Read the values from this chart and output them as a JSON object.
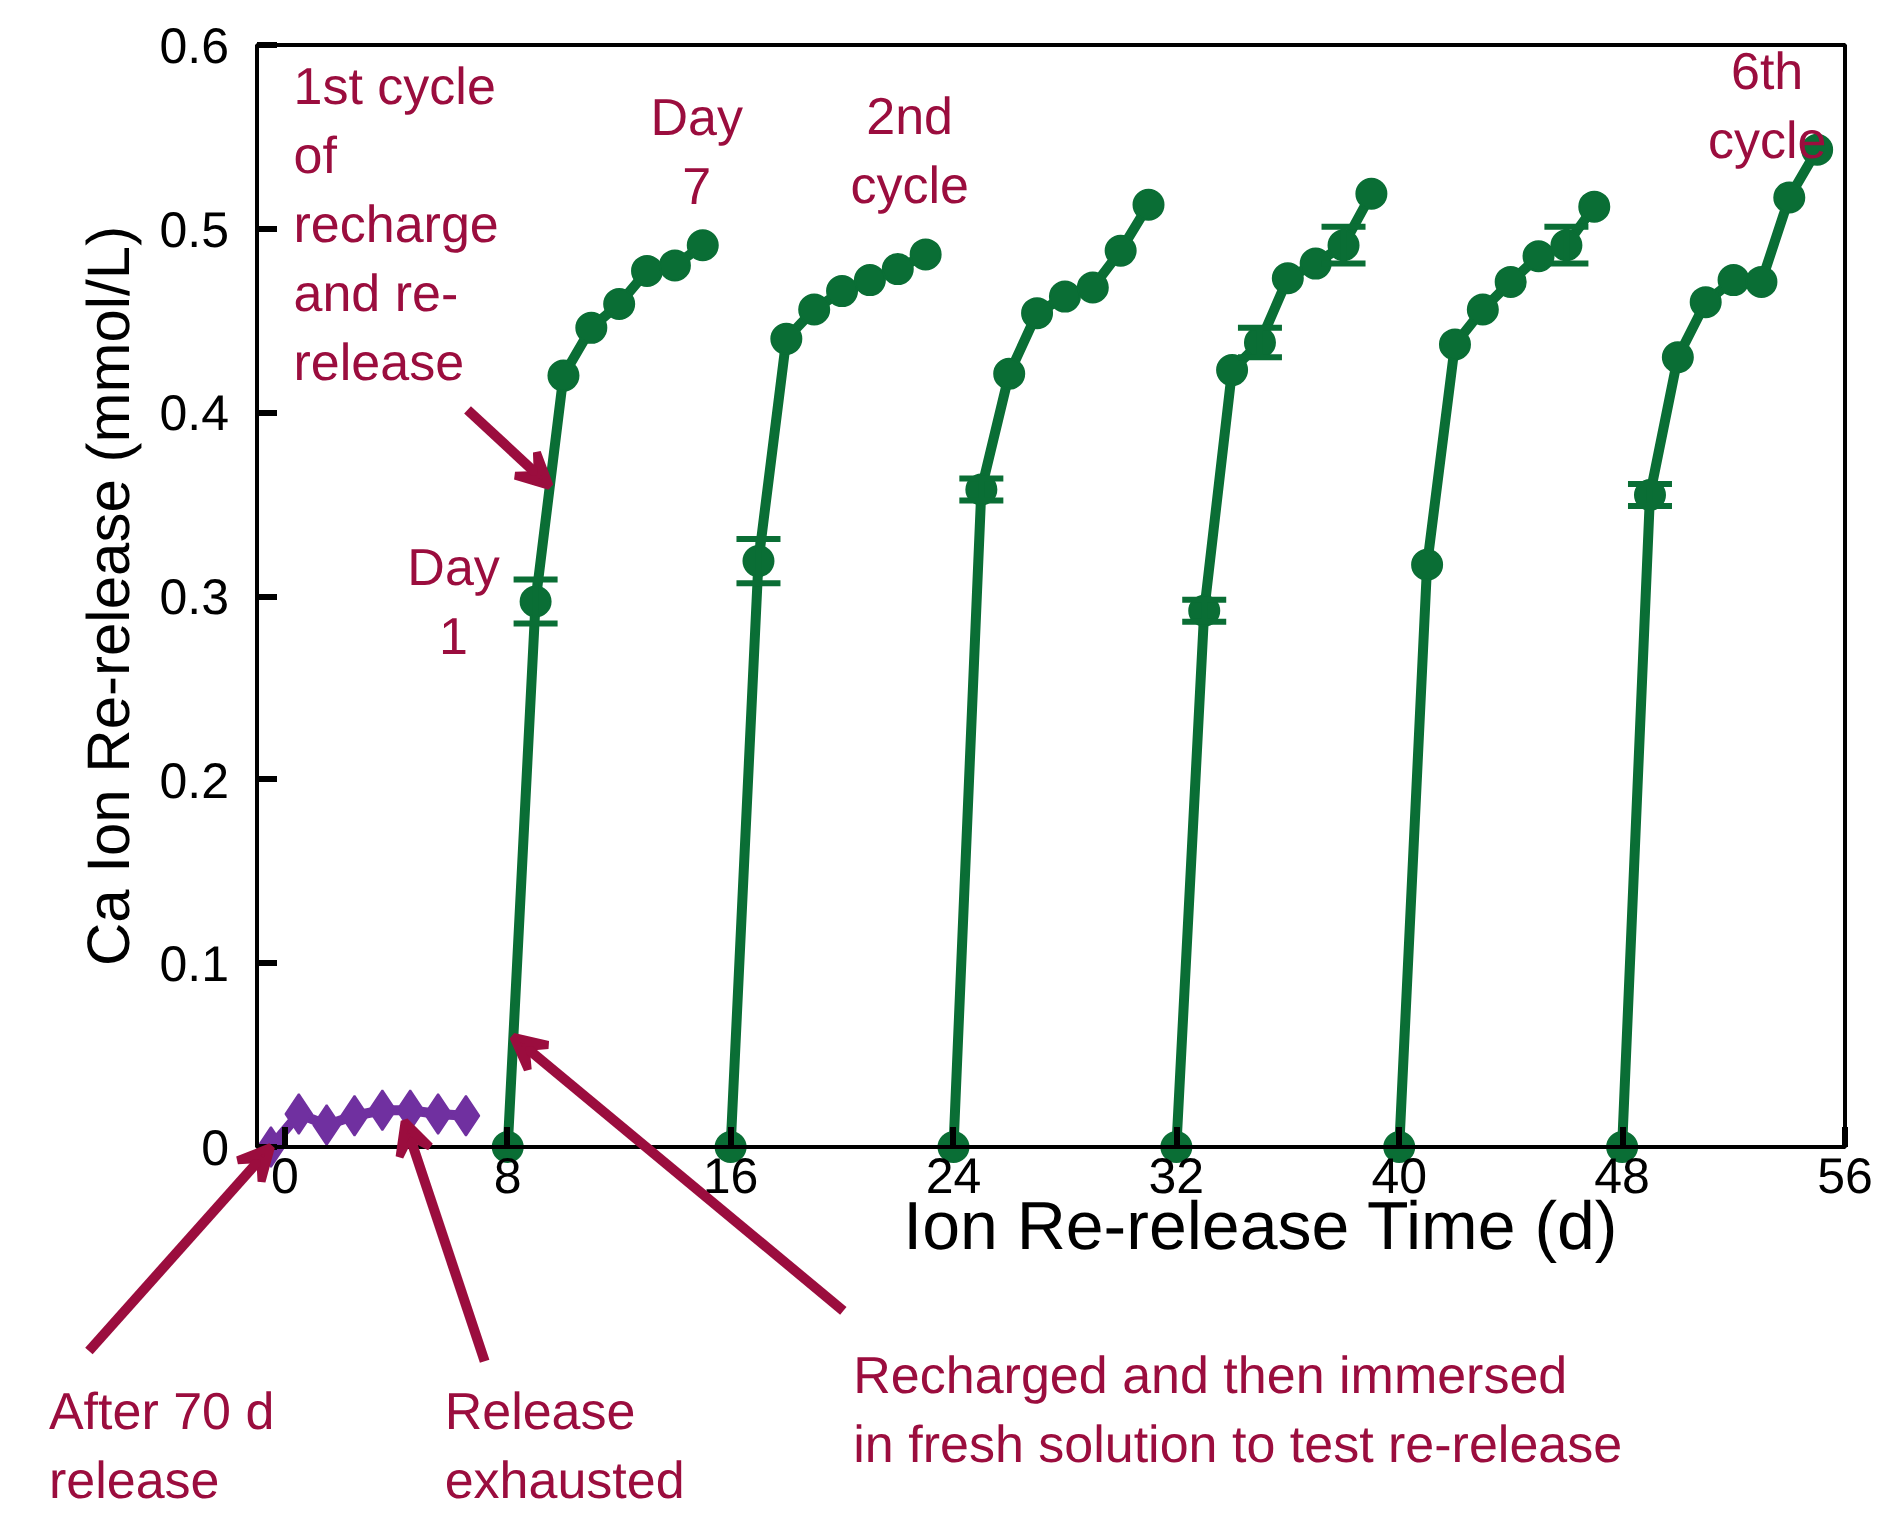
{
  "chart_data": {
    "type": "line",
    "xlabel": "Ion Re-release Time (d)",
    "ylabel": "Ca Ion Re-release (mmol/L)",
    "xlim": [
      -1,
      56
    ],
    "ylim": [
      0,
      0.6
    ],
    "xticks": [
      0,
      8,
      16,
      24,
      32,
      40,
      48,
      56
    ],
    "yticks": [
      0,
      0.1,
      0.2,
      0.3,
      0.4,
      0.5,
      0.6
    ],
    "grid": false,
    "line_style": "solid",
    "series": [
      {
        "color": "#7030a0",
        "marker": "diamond",
        "x": [
          -0.5,
          0.5,
          1.5,
          2.5,
          3.5,
          4.5,
          5.5,
          6.5
        ],
        "values": [
          0,
          0.018,
          0.012,
          0.017,
          0.02,
          0.02,
          0.018,
          0.017
        ]
      },
      {
        "color": "#0a6e35",
        "marker": "circle",
        "x": [
          8,
          9,
          10,
          11,
          12,
          13,
          14,
          15,
          null,
          16,
          17,
          18,
          19,
          20,
          21,
          22,
          23,
          null,
          24,
          25,
          26,
          27,
          28,
          29,
          30,
          31,
          null,
          32,
          33,
          34,
          35,
          36,
          37,
          38,
          39,
          null,
          40,
          41,
          42,
          43,
          44,
          45,
          46,
          47,
          null,
          48,
          49,
          50,
          51,
          52,
          53,
          54,
          55
        ],
        "values": [
          0,
          0.297,
          0.42,
          0.446,
          0.459,
          0.477,
          0.48,
          0.491,
          null,
          0,
          0.319,
          0.44,
          0.456,
          0.466,
          0.472,
          0.478,
          0.486,
          null,
          0,
          0.358,
          0.421,
          0.454,
          0.463,
          0.468,
          0.488,
          0.513,
          null,
          0,
          0.292,
          0.423,
          0.438,
          0.473,
          0.481,
          0.491,
          0.519,
          null,
          0,
          0.317,
          0.437,
          0.456,
          0.471,
          0.485,
          0.491,
          0.512,
          null,
          0,
          0.355,
          0.43,
          0.46,
          0.472,
          0.471,
          0.517,
          0.543
        ],
        "errors": [
          null,
          0.012,
          null,
          null,
          null,
          null,
          null,
          null,
          null,
          null,
          0.012,
          null,
          null,
          null,
          null,
          null,
          null,
          null,
          null,
          0.006,
          null,
          null,
          null,
          null,
          null,
          null,
          null,
          null,
          0.006,
          null,
          0.008,
          null,
          null,
          0.01,
          null,
          null,
          null,
          null,
          null,
          null,
          null,
          null,
          0.01,
          null,
          null,
          null,
          0.006,
          null,
          null,
          null,
          null,
          null,
          null
        ]
      }
    ],
    "annotations": [
      {
        "text": "1st cycle\nof\nrecharge\nand re-\nrelease",
        "x": 9.5,
        "y": 0.36
      },
      {
        "text": "Day\n1",
        "x": 9,
        "y": 0.297
      },
      {
        "text": "Day\n7",
        "x": 15,
        "y": 0.491
      },
      {
        "text": "2nd\ncycle",
        "x": 23,
        "y": 0.486
      },
      {
        "text": "6th\ncycle",
        "x": 55,
        "y": 0.543
      },
      {
        "text": "Recharged and then immersed\nin fresh solution to test re-release",
        "x": 8.2,
        "y": 0.06
      },
      {
        "text": "After 70 d\nrelease",
        "x": -0.5,
        "y": 0
      },
      {
        "text": "Release\nexhausted",
        "x": 4.3,
        "y": 0.014
      }
    ]
  }
}
